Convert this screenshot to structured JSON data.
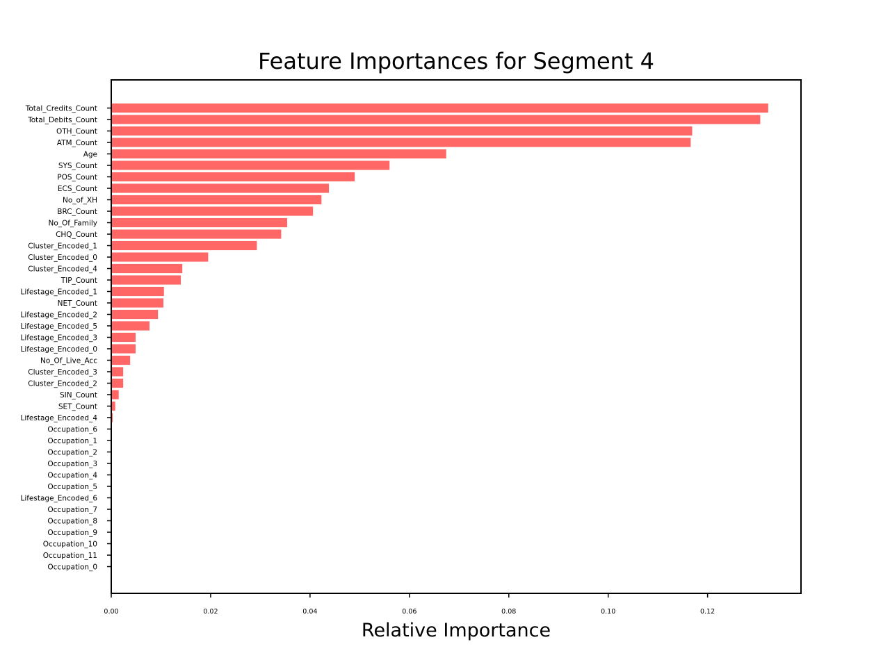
{
  "chart_data": {
    "type": "bar",
    "orientation": "horizontal",
    "title": "Feature Importances for Segment 4",
    "xlabel": "Relative Importance",
    "ylabel": "",
    "xlim": [
      0,
      0.1388
    ],
    "xticks": [
      "0.00",
      "0.02",
      "0.04",
      "0.06",
      "0.08",
      "0.10",
      "0.12"
    ],
    "xtick_values": [
      0,
      0.02,
      0.04,
      0.06,
      0.08,
      0.1,
      0.12
    ],
    "grid": false,
    "bar_color": "#ff6666",
    "categories": [
      "Total_Credits_Count",
      "Total_Debits_Count",
      "OTH_Count",
      "ATM_Count",
      "Age",
      "SYS_Count",
      "POS_Count",
      "ECS_Count",
      "No_of_XH",
      "BRC_Count",
      "No_Of_Family",
      "CHQ_Count",
      "Cluster_Encoded_1",
      "Cluster_Encoded_0",
      "Cluster_Encoded_4",
      "TIP_Count",
      "Lifestage_Encoded_1",
      "NET_Count",
      "Lifestage_Encoded_2",
      "Lifestage_Encoded_5",
      "Lifestage_Encoded_3",
      "Lifestage_Encoded_0",
      "No_Of_Live_Acc",
      "Cluster_Encoded_3",
      "Cluster_Encoded_2",
      "SIN_Count",
      "SET_Count",
      "Lifestage_Encoded_4",
      "Occupation_6",
      "Occupation_1",
      "Occupation_2",
      "Occupation_3",
      "Occupation_4",
      "Occupation_5",
      "Lifestage_Encoded_6",
      "Occupation_7",
      "Occupation_8",
      "Occupation_9",
      "Occupation_10",
      "Occupation_11",
      "Occupation_0"
    ],
    "values": [
      0.1322,
      0.1306,
      0.1169,
      0.1166,
      0.0674,
      0.056,
      0.049,
      0.0438,
      0.0423,
      0.0406,
      0.0354,
      0.0342,
      0.0293,
      0.0195,
      0.0143,
      0.014,
      0.0106,
      0.0105,
      0.0094,
      0.0077,
      0.0049,
      0.0049,
      0.0038,
      0.0024,
      0.0024,
      0.0015,
      0.0008,
      0.0003,
      0.0001,
      0.0,
      0.0,
      0.0,
      0.0,
      0.0,
      0.0,
      0.0,
      0.0,
      0.0,
      0.0,
      0.0,
      0.0
    ]
  }
}
